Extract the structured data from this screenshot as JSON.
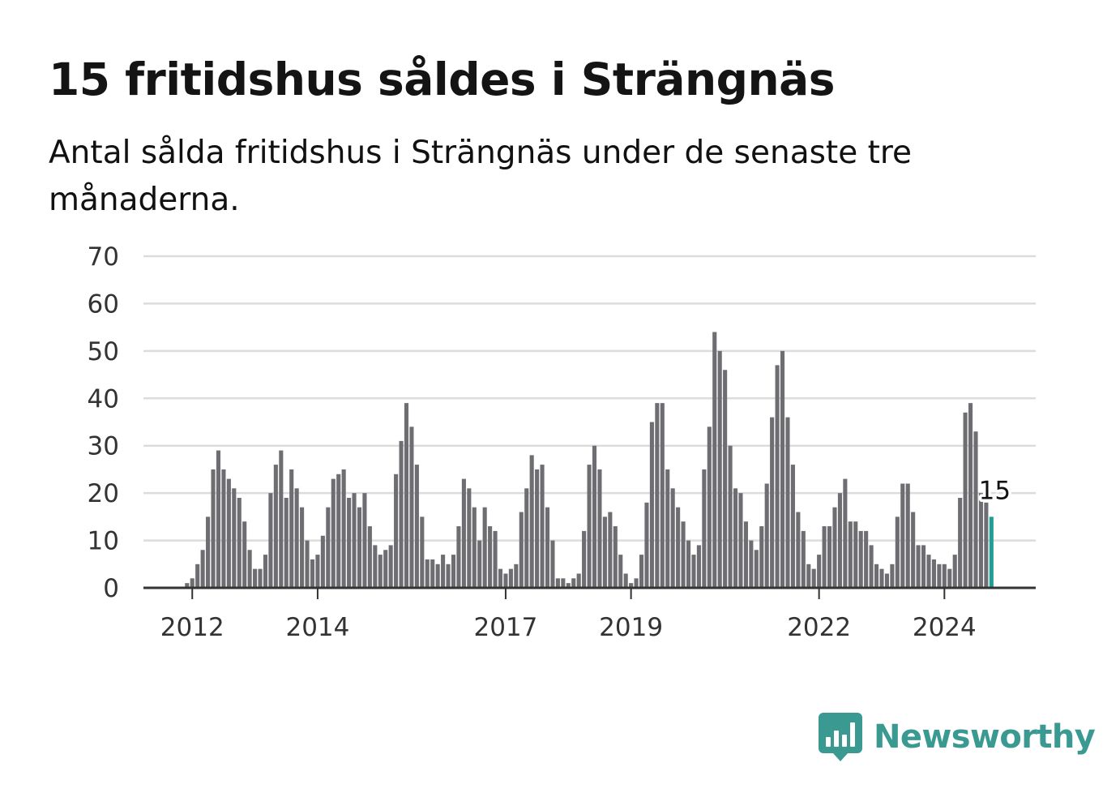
{
  "title": "15 fritidshus såldes i Strängnäs",
  "subtitle": "Antal sålda fritidshus i Strängnäs under de senaste tre månaderna.",
  "brand": {
    "name": "Newsworthy",
    "icon": "newsworthy-chart-bubble-icon",
    "color": "#3a9a92"
  },
  "colors": {
    "bar": "#6e6d71",
    "highlight": "#1f9e96",
    "grid": "#dcdcdc",
    "axis": "#333333"
  },
  "chart_data": {
    "type": "bar",
    "title": "15 fritidshus såldes i Strängnäs",
    "xlabel": "",
    "ylabel": "",
    "ylim": [
      0,
      70
    ],
    "yticks": [
      0,
      10,
      20,
      30,
      40,
      50,
      60,
      70
    ],
    "xticks": [
      "2012",
      "2014",
      "2017",
      "2019",
      "2022",
      "2024"
    ],
    "xtick_dates": [
      "2012-01",
      "2014-01",
      "2017-01",
      "2019-01",
      "2022-01",
      "2024-01"
    ],
    "grid": true,
    "legend": "none",
    "highlight_label": "15",
    "series": [
      {
        "start": "2011-12",
        "frequency": "monthly",
        "highlight_last": true,
        "values": [
          1,
          2,
          5,
          8,
          15,
          25,
          29,
          25,
          23,
          21,
          19,
          14,
          8,
          4,
          4,
          7,
          20,
          26,
          29,
          19,
          25,
          21,
          17,
          10,
          6,
          7,
          11,
          17,
          23,
          24,
          25,
          19,
          20,
          17,
          20,
          13,
          9,
          7,
          8,
          9,
          24,
          31,
          39,
          34,
          26,
          15,
          6,
          6,
          5,
          7,
          5,
          7,
          13,
          23,
          21,
          17,
          10,
          17,
          13,
          12,
          4,
          3,
          4,
          5,
          16,
          21,
          28,
          25,
          26,
          17,
          10,
          2,
          2,
          1,
          2,
          3,
          12,
          26,
          30,
          25,
          15,
          16,
          13,
          7,
          3,
          1,
          2,
          7,
          18,
          35,
          39,
          39,
          25,
          21,
          17,
          14,
          10,
          7,
          9,
          25,
          34,
          54,
          50,
          46,
          30,
          21,
          20,
          14,
          10,
          8,
          13,
          22,
          36,
          47,
          50,
          36,
          26,
          16,
          12,
          5,
          4,
          7,
          13,
          13,
          17,
          20,
          23,
          14,
          14,
          12,
          12,
          9,
          5,
          4,
          3,
          5,
          15,
          22,
          22,
          16,
          9,
          9,
          7,
          6,
          5,
          5,
          4,
          7,
          19,
          37,
          39,
          33,
          20,
          18,
          15
        ]
      }
    ]
  }
}
